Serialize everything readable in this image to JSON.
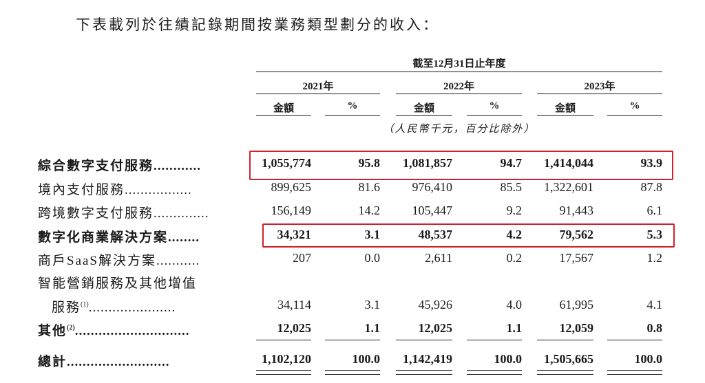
{
  "intro": "下表載列於往績記錄期間按業務類型劃分的收入：",
  "period_header": "截至12月31日止年度",
  "years": [
    "2021年",
    "2022年",
    "2023年"
  ],
  "col_amount": "金額",
  "col_pct": "%",
  "unit_note": "（人民幣千元，百分比除外）",
  "rows": [
    {
      "label": "綜合數字支付服務",
      "dots": "............",
      "bold": true,
      "values": [
        "1,055,774",
        "95.8",
        "1,081,857",
        "94.7",
        "1,414,044",
        "93.9"
      ]
    },
    {
      "label": "境內支付服務",
      "dots": ".................",
      "bold": false,
      "values": [
        "899,625",
        "81.6",
        "976,410",
        "85.5",
        "1,322,601",
        "87.8"
      ]
    },
    {
      "label": "跨境數字支付服務",
      "dots": "..............",
      "bold": false,
      "values": [
        "156,149",
        "14.2",
        "105,447",
        "9.2",
        "91,443",
        "6.1"
      ]
    },
    {
      "label": "數字化商業解決方案",
      "dots": "........",
      "bold": true,
      "values": [
        "34,321",
        "3.1",
        "48,537",
        "4.2",
        "79,562",
        "5.3"
      ]
    },
    {
      "label": "商戶SaaS解決方案",
      "dots": "...........",
      "bold": false,
      "values": [
        "207",
        "0.0",
        "2,611",
        "0.2",
        "17,567",
        "1.2"
      ]
    },
    {
      "label": "智能營銷服務及其他增值",
      "dots": "",
      "bold": false,
      "values": [
        "",
        "",
        "",
        "",
        "",
        ""
      ]
    },
    {
      "label": "服務",
      "sup": "(1)",
      "dots": "......................",
      "bold": false,
      "indent": true,
      "values": [
        "34,114",
        "3.1",
        "45,926",
        "4.0",
        "61,995",
        "4.1"
      ]
    },
    {
      "label": "其他",
      "sup": "(2)",
      "dots": ".............................",
      "bold": true,
      "values": [
        "12,025",
        "1.1",
        "12,025",
        "1.1",
        "12,059",
        "0.8"
      ]
    },
    {
      "label": "總計",
      "dots": "..........................",
      "bold": true,
      "values": [
        "1,102,120",
        "100.0",
        "1,142,419",
        "100.0",
        "1,505,665",
        "100.0"
      ]
    }
  ],
  "highlight_color": "#d0202a"
}
